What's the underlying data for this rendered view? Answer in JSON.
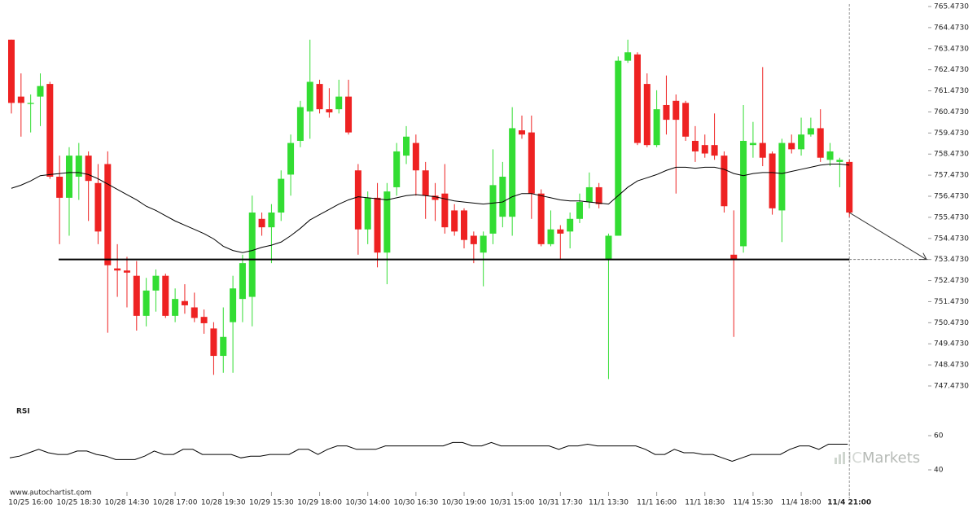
{
  "chart_data": {
    "type": "candlestick",
    "up_color": "#33dd33",
    "down_color": "#ee2222",
    "categories": [
      null,
      null,
      "10/25 16:00",
      null,
      null,
      null,
      null,
      "10/25 18:30",
      null,
      null,
      null,
      null,
      "10/28 14:30",
      null,
      null,
      null,
      null,
      "10/28 17:00",
      null,
      null,
      null,
      null,
      "10/28 19:30",
      null,
      null,
      null,
      null,
      "10/29 15:30",
      null,
      null,
      null,
      null,
      "10/29 18:00",
      null,
      null,
      null,
      null,
      "10/30 14:00",
      null,
      null,
      null,
      null,
      "10/30 16:30",
      null,
      null,
      null,
      null,
      "10/30 19:00",
      null,
      null,
      null,
      null,
      "10/31 15:00",
      null,
      null,
      null,
      null,
      "10/31 17:30",
      null,
      null,
      null,
      null,
      "11/1 13:30",
      null,
      null,
      null,
      null,
      "11/1 16:00",
      null,
      null,
      null,
      null,
      "11/1 18:30",
      null,
      null,
      null,
      null,
      "11/4 15:30",
      null,
      null,
      null,
      null,
      "11/4 18:00",
      null,
      null,
      null,
      null,
      "11/4 21:00"
    ],
    "open": [
      763.9,
      761.2,
      760.85,
      761.2,
      761.8,
      757.4,
      756.4,
      757.4,
      758.4,
      757.1,
      758.0,
      753.05,
      752.95,
      752.7,
      750.8,
      752.0,
      752.7,
      750.8,
      751.5,
      751.2,
      750.75,
      750.2,
      748.9,
      750.5,
      751.6,
      751.7,
      755.4,
      755.0,
      755.7,
      757.5,
      759.1,
      760.5,
      761.8,
      760.6,
      760.6,
      761.2,
      757.7,
      754.9,
      756.4,
      753.8,
      756.9,
      758.4,
      759.0,
      757.7,
      756.5,
      756.6,
      755.8,
      755.8,
      754.6,
      753.8,
      754.7,
      755.5,
      755.5,
      759.6,
      759.5,
      756.6,
      754.2,
      754.9,
      754.8,
      755.4,
      756.2,
      756.9,
      753.5,
      754.6,
      762.9,
      763.2,
      761.8,
      758.9,
      760.8,
      761.0,
      760.9,
      759.1,
      758.9,
      758.9,
      758.4,
      753.7,
      754.1,
      758.9,
      759.0,
      758.5,
      755.8,
      759.0,
      758.7,
      759.4,
      759.7,
      758.2,
      758.1,
      758.1
    ],
    "high": [
      763.9,
      762.3,
      761.3,
      762.3,
      761.9,
      758.4,
      758.8,
      759.0,
      758.6,
      758.0,
      758.6,
      754.2,
      753.6,
      753.4,
      752.6,
      753.0,
      752.8,
      752.1,
      752.3,
      751.9,
      751.1,
      750.5,
      751.2,
      752.7,
      753.7,
      756.5,
      755.7,
      756.1,
      757.7,
      759.4,
      761.0,
      763.9,
      762.0,
      761.6,
      762.0,
      762.0,
      758.0,
      756.7,
      757.1,
      757.1,
      759.0,
      759.8,
      759.4,
      758.1,
      757.1,
      758.0,
      756.1,
      755.9,
      754.8,
      754.8,
      758.7,
      758.1,
      760.7,
      760.3,
      760.3,
      756.8,
      755.8,
      755.1,
      755.7,
      756.6,
      757.6,
      757.1,
      754.7,
      763.1,
      763.9,
      763.3,
      762.3,
      761.5,
      762.2,
      761.3,
      761.0,
      759.8,
      759.4,
      760.4,
      758.6,
      755.8,
      760.8,
      760.0,
      762.6,
      758.6,
      759.2,
      759.4,
      760.2,
      760.2,
      760.6,
      759.0,
      758.3,
      758.2
    ],
    "low": [
      760.4,
      759.3,
      759.5,
      759.8,
      757.3,
      754.2,
      754.6,
      756.3,
      755.3,
      754.2,
      750.0,
      751.7,
      751.2,
      750.1,
      750.3,
      751.0,
      750.7,
      750.5,
      750.9,
      750.5,
      749.95,
      748.0,
      748.1,
      748.1,
      750.5,
      750.3,
      754.6,
      753.3,
      755.3,
      756.5,
      758.8,
      759.2,
      760.4,
      760.2,
      760.4,
      759.4,
      753.7,
      754.2,
      753.1,
      752.3,
      756.5,
      758.0,
      756.5,
      755.4,
      755.3,
      754.7,
      754.6,
      754.0,
      753.3,
      752.2,
      754.2,
      755.0,
      754.6,
      759.2,
      755.4,
      754.1,
      754.1,
      753.5,
      754.0,
      755.2,
      755.9,
      755.9,
      747.8,
      754.6,
      762.8,
      758.9,
      758.8,
      758.8,
      759.4,
      756.6,
      759.1,
      758.1,
      758.3,
      758.2,
      755.7,
      749.8,
      753.8,
      758.3,
      757.9,
      755.6,
      754.3,
      758.5,
      758.4,
      759.3,
      758.1,
      757.9,
      756.9,
      755.5
    ],
    "close": [
      760.9,
      760.9,
      760.9,
      761.7,
      757.4,
      756.4,
      758.4,
      758.4,
      757.2,
      754.8,
      753.2,
      752.95,
      752.85,
      750.8,
      752.0,
      752.7,
      750.8,
      751.6,
      751.3,
      750.7,
      750.45,
      748.9,
      749.8,
      752.1,
      753.3,
      755.7,
      755.0,
      755.7,
      757.3,
      759.0,
      760.7,
      761.9,
      760.6,
      760.45,
      761.2,
      759.5,
      754.9,
      756.4,
      753.8,
      756.7,
      758.6,
      759.3,
      757.7,
      756.5,
      756.3,
      755.0,
      754.8,
      754.4,
      754.2,
      754.6,
      757.0,
      757.4,
      759.7,
      759.4,
      756.6,
      754.2,
      754.9,
      754.7,
      755.4,
      756.2,
      756.9,
      756.1,
      754.6,
      762.9,
      763.3,
      759.0,
      758.9,
      760.6,
      760.1,
      760.1,
      759.3,
      758.6,
      758.5,
      758.4,
      756.0,
      753.5,
      759.1,
      759.0,
      758.3,
      755.9,
      759.0,
      758.7,
      759.4,
      759.7,
      758.3,
      758.6,
      758.2,
      755.7
    ],
    "moving_average": {
      "color": "#000000",
      "values": [
        756.85,
        757.0,
        757.2,
        757.45,
        757.5,
        757.55,
        757.6,
        757.6,
        757.5,
        757.3,
        757.05,
        756.8,
        756.55,
        756.3,
        756.0,
        755.8,
        755.55,
        755.3,
        755.1,
        754.9,
        754.7,
        754.45,
        754.1,
        753.9,
        753.8,
        753.9,
        754.05,
        754.15,
        754.3,
        754.6,
        754.95,
        755.35,
        755.6,
        755.85,
        756.1,
        756.3,
        756.45,
        756.4,
        756.35,
        756.3,
        756.4,
        756.5,
        756.55,
        756.5,
        756.45,
        756.35,
        756.25,
        756.2,
        756.15,
        756.1,
        756.15,
        756.2,
        756.45,
        756.6,
        756.6,
        756.5,
        756.4,
        756.3,
        756.25,
        756.25,
        756.2,
        756.15,
        756.1,
        756.5,
        756.9,
        757.2,
        757.35,
        757.5,
        757.7,
        757.85,
        757.85,
        757.8,
        757.85,
        757.85,
        757.75,
        757.55,
        757.45,
        757.55,
        757.6,
        757.6,
        757.55,
        757.65,
        757.75,
        757.85,
        757.95,
        758.0,
        758.0,
        757.95
      ]
    },
    "support": {
      "level": 753.473,
      "color": "#000000"
    },
    "ylim": [
      747.473,
      765.473
    ],
    "yticks": [
      {
        "value": 747.473,
        "label": "747.4730"
      },
      {
        "value": 748.473,
        "label": "748.4730"
      },
      {
        "value": 749.473,
        "label": "749.4730"
      },
      {
        "value": 750.473,
        "label": "750.4730"
      },
      {
        "value": 751.473,
        "label": "751.4730"
      },
      {
        "value": 752.473,
        "label": "752.4730"
      },
      {
        "value": 753.473,
        "label": "753.4730"
      },
      {
        "value": 754.473,
        "label": "754.4730"
      },
      {
        "value": 755.473,
        "label": "755.4730"
      },
      {
        "value": 756.473,
        "label": "756.4730"
      },
      {
        "value": 757.473,
        "label": "757.4730"
      },
      {
        "value": 758.473,
        "label": "758.4730"
      },
      {
        "value": 759.473,
        "label": "759.4730"
      },
      {
        "value": 760.473,
        "label": "760.4730"
      },
      {
        "value": 761.473,
        "label": "761.4730"
      },
      {
        "value": 762.473,
        "label": "762.4730"
      },
      {
        "value": 763.473,
        "label": "763.4730"
      },
      {
        "value": 764.473,
        "label": "764.4730"
      },
      {
        "value": 765.473,
        "label": "765.4730"
      }
    ],
    "rsi": {
      "label": "RSI",
      "color": "#000000",
      "ylim": [
        30,
        70
      ],
      "yticks": [
        40,
        60
      ],
      "values": [
        47,
        48,
        50,
        52,
        50,
        49,
        49,
        51,
        51,
        49,
        48,
        46,
        46,
        46,
        48,
        51,
        49,
        49,
        52,
        52,
        49,
        49,
        49,
        49,
        47,
        48,
        48,
        49,
        49,
        49,
        52,
        52,
        49,
        52,
        54,
        54,
        52,
        52,
        52,
        54,
        54,
        54,
        54,
        54,
        54,
        54,
        56,
        56,
        54,
        54,
        56,
        54,
        54,
        54,
        54,
        54,
        54,
        52,
        54,
        54,
        55,
        54,
        54,
        54,
        54,
        54,
        52,
        49,
        49,
        52,
        50,
        50,
        49,
        49,
        47,
        45,
        47,
        49,
        49,
        49,
        49,
        52,
        54,
        54,
        52,
        55,
        55,
        55
      ]
    },
    "source": "www.autochartist.com",
    "watermark": {
      "prefix": "IC",
      "name": "Markets"
    }
  }
}
